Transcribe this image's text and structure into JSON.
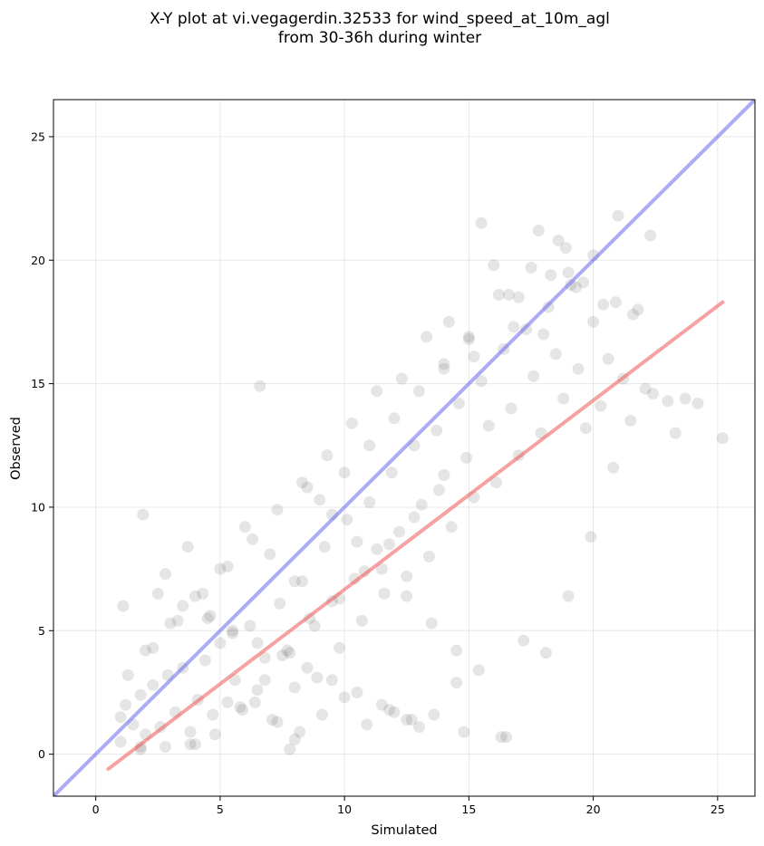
{
  "chart_data": {
    "type": "scatter",
    "title": "X-Y plot at vi.vegagerdin.32533 for wind_speed_at_10m_agl\nfrom 30-36h during winter",
    "xlabel": "Simulated",
    "ylabel": "Observed",
    "xlim": [
      -1.7,
      26.5
    ],
    "ylim": [
      -1.7,
      26.5
    ],
    "xticks": [
      0,
      5,
      10,
      15,
      20,
      25
    ],
    "yticks": [
      0,
      5,
      10,
      15,
      20,
      25
    ],
    "grid": true,
    "lines": [
      {
        "x": [
          -1.7,
          26.5
        ],
        "y": [
          -1.7,
          26.5
        ],
        "color": "#6666ee"
      },
      {
        "x": [
          0.5,
          25.2
        ],
        "y": [
          -0.6,
          18.3
        ],
        "color": "#ee5555"
      }
    ],
    "point_color": "#333333",
    "series": [
      {
        "x": [
          1.0,
          1.2,
          1.5,
          1.8,
          2.0,
          2.3,
          2.6,
          2.9,
          3.2,
          3.5,
          3.8,
          4.1,
          4.4,
          4.7,
          5.0,
          5.3,
          5.6,
          5.9,
          6.2,
          6.5,
          6.8,
          7.1,
          7.4,
          7.7,
          8.0,
          8.3,
          8.6,
          8.9,
          9.2,
          9.5,
          9.8,
          10.1,
          10.4,
          10.7,
          11.0,
          11.3,
          11.6,
          11.9,
          12.2,
          12.5,
          12.8,
          13.1,
          13.4,
          13.7,
          14.0,
          14.3,
          14.6,
          14.9,
          15.2,
          15.5,
          15.8,
          16.1,
          16.4,
          16.7,
          17.0,
          17.3,
          17.6,
          17.9,
          18.2,
          18.5,
          18.8,
          19.1,
          19.4,
          19.7,
          20.0,
          20.3,
          20.6,
          20.9,
          21.2,
          21.5,
          21.8,
          22.1,
          22.4,
          23.0,
          23.3,
          23.7,
          24.2,
          25.2,
          1.1,
          1.9,
          2.8,
          3.7,
          4.6,
          5.5,
          6.4,
          7.3,
          8.2,
          9.1,
          10.0,
          10.9,
          11.8,
          12.7,
          13.6,
          14.5,
          15.4,
          16.3,
          17.2,
          18.1,
          19.0,
          19.9,
          20.8,
          6.6,
          1.0,
          1.8,
          4.0,
          7.8,
          8.0,
          16.5,
          14.8,
          13.0,
          12.5,
          12.0,
          11.5,
          10.5,
          9.5,
          8.5,
          7.5,
          6.5,
          5.5,
          4.5,
          3.5,
          2.5,
          15.5,
          16.0,
          17.0,
          18.0,
          19.0,
          20.0,
          21.0,
          22.3,
          18.6,
          17.8,
          16.8,
          15.2,
          14.2,
          13.3,
          12.3,
          11.3,
          10.3,
          9.3,
          8.3,
          7.3,
          6.3,
          5.3,
          4.3,
          3.3,
          2.3,
          1.3,
          16.2,
          17.5,
          18.9,
          19.6,
          20.4,
          21.6,
          13.8,
          12.8,
          11.8,
          10.8,
          9.8,
          8.8,
          7.8,
          6.8,
          5.8,
          4.8,
          3.8,
          2.8,
          1.8,
          14.0,
          15.0,
          16.6,
          18.3,
          19.3,
          6.0,
          7.0,
          8.0,
          9.0,
          10.0,
          11.0,
          12.0,
          13.0,
          14.0,
          15.0,
          5.0,
          4.0,
          3.0,
          2.0,
          8.5,
          9.5,
          10.5,
          11.5,
          12.5,
          13.5,
          14.5
        ],
        "y": [
          1.5,
          2.0,
          1.2,
          2.4,
          0.8,
          2.8,
          1.1,
          3.2,
          1.7,
          3.5,
          0.9,
          2.2,
          3.8,
          1.6,
          4.5,
          2.1,
          3.0,
          1.8,
          5.2,
          2.6,
          3.9,
          1.4,
          6.1,
          4.2,
          2.7,
          7.0,
          5.5,
          3.1,
          8.4,
          6.2,
          4.3,
          9.5,
          7.1,
          5.4,
          10.2,
          8.3,
          6.5,
          11.4,
          9.0,
          7.2,
          12.5,
          10.1,
          8.0,
          13.1,
          11.3,
          9.2,
          14.2,
          12.0,
          10.4,
          15.1,
          13.3,
          11.0,
          16.4,
          14.0,
          12.1,
          17.2,
          15.3,
          13.0,
          18.1,
          16.2,
          14.4,
          19.0,
          15.6,
          13.2,
          17.5,
          14.1,
          16.0,
          18.3,
          15.2,
          13.5,
          18.0,
          14.8,
          14.6,
          14.3,
          13.0,
          14.4,
          14.2,
          12.8,
          6.0,
          9.7,
          7.3,
          8.4,
          5.6,
          4.9,
          2.1,
          1.3,
          0.9,
          1.6,
          2.3,
          1.2,
          1.8,
          1.4,
          1.6,
          2.9,
          3.4,
          0.7,
          4.6,
          4.1,
          6.4,
          8.8,
          11.6,
          14.9,
          0.5,
          0.3,
          0.4,
          0.2,
          0.6,
          0.7,
          0.9,
          1.1,
          1.4,
          1.7,
          2.0,
          2.5,
          3.0,
          3.5,
          4.0,
          4.5,
          5.0,
          5.5,
          6.0,
          6.5,
          21.5,
          19.8,
          18.5,
          17.0,
          19.5,
          20.2,
          21.8,
          21.0,
          20.8,
          21.2,
          17.3,
          16.1,
          17.5,
          16.9,
          15.2,
          14.7,
          13.4,
          12.1,
          11.0,
          9.9,
          8.7,
          7.6,
          6.5,
          5.4,
          4.3,
          3.2,
          18.6,
          19.7,
          20.5,
          19.1,
          18.2,
          17.8,
          10.7,
          9.6,
          8.5,
          7.4,
          6.3,
          5.2,
          4.1,
          3.0,
          1.9,
          0.8,
          0.4,
          0.3,
          0.2,
          15.6,
          16.8,
          18.6,
          19.4,
          18.9,
          9.2,
          8.1,
          7.0,
          10.3,
          11.4,
          12.5,
          13.6,
          14.7,
          15.8,
          16.9,
          7.5,
          6.4,
          5.3,
          4.2,
          10.8,
          9.7,
          8.6,
          7.5,
          6.4,
          5.3,
          4.2
        ]
      }
    ]
  }
}
